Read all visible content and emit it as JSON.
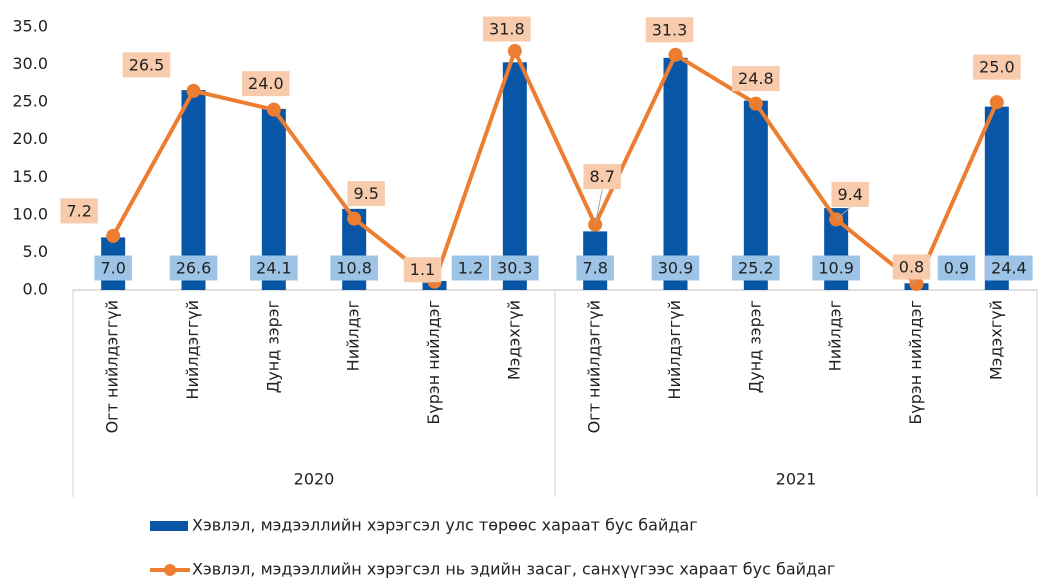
{
  "chart_data": {
    "type": "bar_line",
    "categories": [
      "Огт нийлдэггүй",
      "Нийлдэггүй",
      "Дунд зэрэг",
      "Нийлдэг",
      "Бүрэн нийлдэг",
      "Мэдэхгүй",
      "Огт нийлдэггүй",
      "Нийлдэггүй",
      "Дунд зэрэг",
      "Нийлдэг",
      "Бүрэн нийлдэг",
      "Мэдэхгүй"
    ],
    "groups": [
      "2020",
      "2021"
    ],
    "series": [
      {
        "name": "Хэвлэл, мэдээллийн хэрэгсэл улс төрөөс хараат бус байдаг",
        "type": "bar",
        "color": "#0a56a6",
        "values": [
          7.0,
          26.6,
          24.1,
          10.8,
          1.2,
          30.3,
          7.8,
          30.9,
          25.2,
          10.9,
          0.9,
          24.4
        ],
        "value_labels": [
          "7.0",
          "26.6",
          "24.1",
          "10.8",
          "1.2",
          "30.3",
          "7.8",
          "30.9",
          "25.2",
          "10.9",
          "0.9",
          "24.4"
        ]
      },
      {
        "name": "Хэвлэл, мэдээллийн хэрэгсэл нь эдийн засаг, санхүүгээс хараат бус байдаг",
        "type": "line",
        "color": "#ed7d31",
        "values": [
          7.2,
          26.5,
          24.0,
          9.5,
          1.1,
          31.8,
          8.7,
          31.3,
          24.8,
          9.4,
          0.8,
          25.0
        ],
        "value_labels": [
          "7.2",
          "26.5",
          "24.0",
          "9.5",
          "1.1",
          "31.8",
          "8.7",
          "31.3",
          "24.8",
          "9.4",
          "0.8",
          "25.0"
        ]
      }
    ],
    "ylim": [
      0,
      35
    ],
    "yticks": [
      {
        "value": 0,
        "label": "0.0"
      },
      {
        "value": 5,
        "label": "5.0"
      },
      {
        "value": 10,
        "label": "10.0"
      },
      {
        "value": 15,
        "label": "15.0"
      },
      {
        "value": 20,
        "label": "20.0"
      },
      {
        "value": 25,
        "label": "25.0"
      },
      {
        "value": 30,
        "label": "30.0"
      },
      {
        "value": 35,
        "label": "35.0"
      }
    ],
    "grid": false
  }
}
